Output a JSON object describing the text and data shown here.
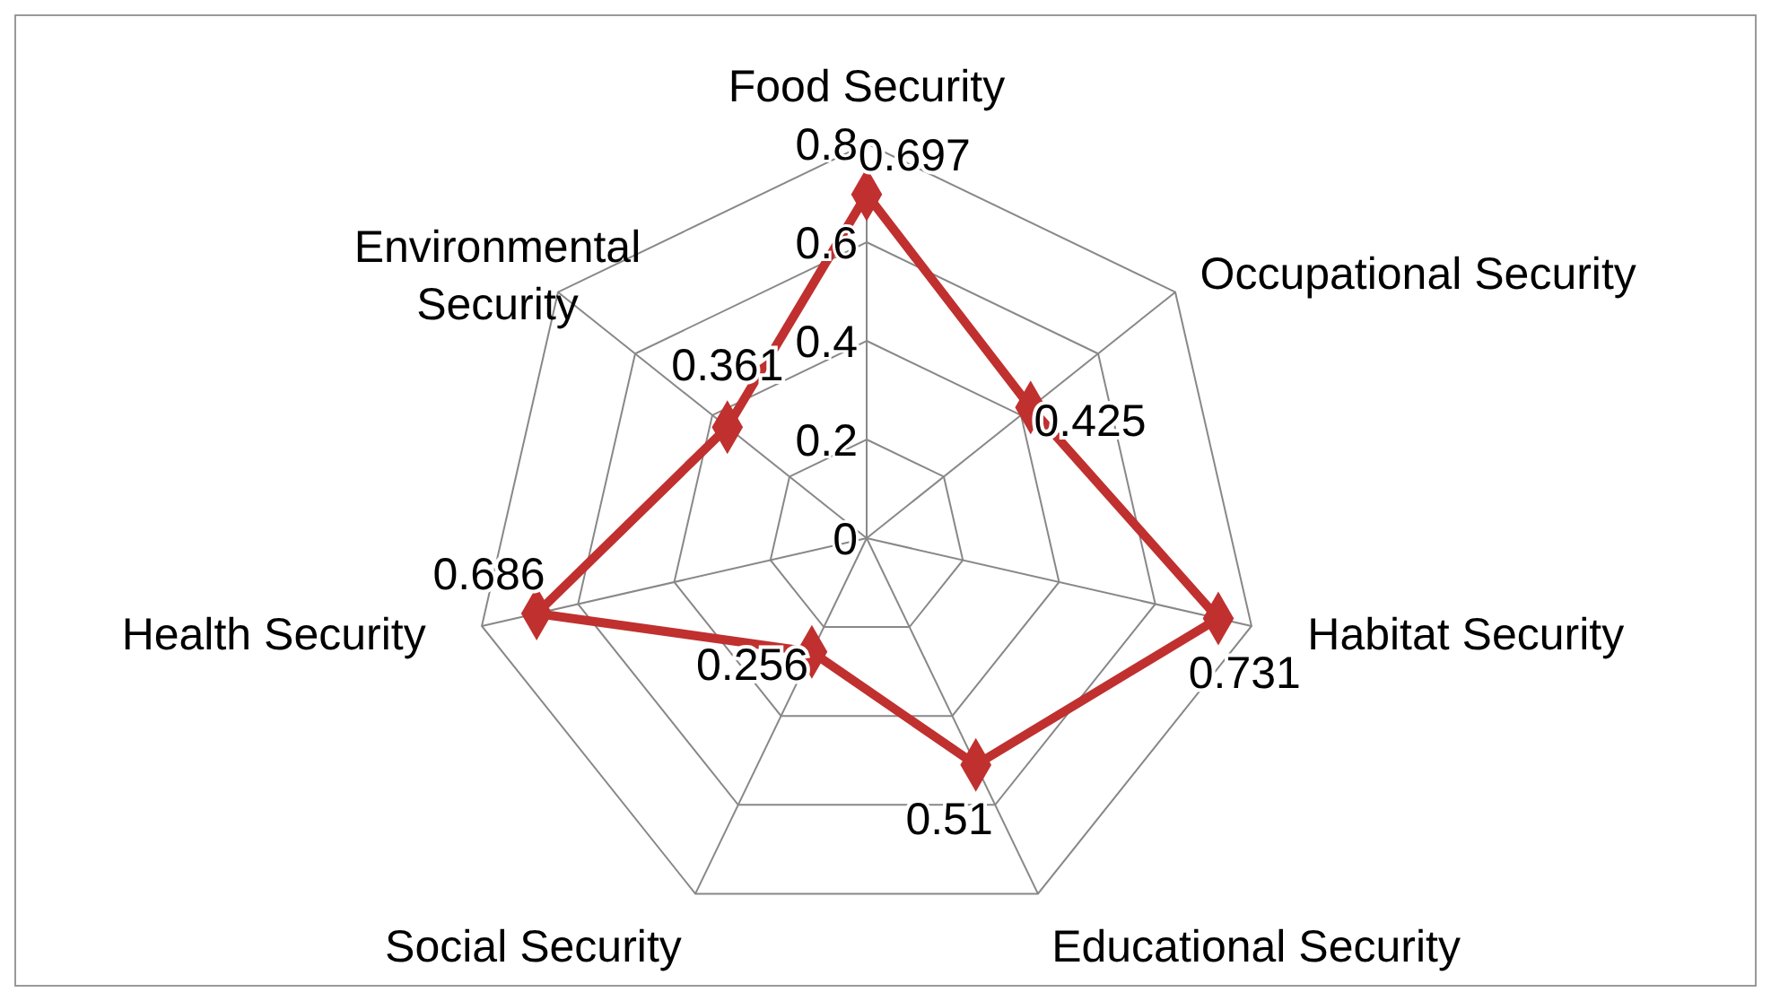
{
  "chart_data": {
    "type": "radar",
    "categories": [
      "Food Security",
      "Occupational Security",
      "Habitat Security",
      "Educational Security",
      "Social Security",
      "Health Security",
      "Environmental Security"
    ],
    "series": [
      {
        "color": "#c0302f",
        "values": [
          0.697,
          0.425,
          0.731,
          0.51,
          0.256,
          0.686,
          0.361
        ]
      }
    ],
    "ylim": [
      0,
      0.8
    ],
    "yticks": [
      0,
      0.2,
      0.4,
      0.6,
      0.8
    ],
    "grid": true,
    "data_labels": true,
    "marker": "diamond",
    "line_style": "solid"
  }
}
